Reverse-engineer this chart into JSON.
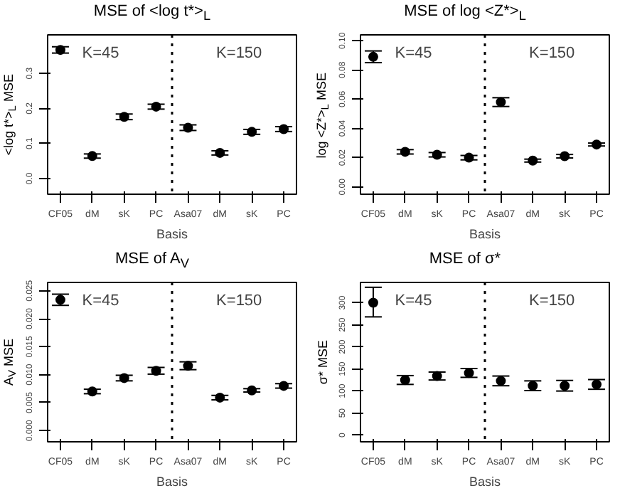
{
  "chart_data": [
    {
      "type": "scatter",
      "title": "MSE of <log t*>$_{L}$",
      "xlabel": "Basis",
      "ylabel": "<log t*>$_{L}$ MSE",
      "categories": [
        "CF05",
        "dM",
        "sK",
        "PC",
        "Asa07",
        "dM",
        "sK",
        "PC"
      ],
      "series": [
        {
          "color": "#000000",
          "values": [
            0.367,
            0.064,
            0.176,
            0.205,
            0.145,
            0.073,
            0.133,
            0.141
          ],
          "errors": [
            0.009,
            0.006,
            0.008,
            0.007,
            0.008,
            0.006,
            0.007,
            0.007
          ]
        }
      ],
      "marker": "circle",
      "ylim": [
        -0.045,
        0.41
      ],
      "yticks": [
        {
          "value": 0,
          "label": "0.0"
        },
        0.1,
        0.2,
        0.3
      ],
      "grid": false,
      "annotations": [
        "K=45",
        "K=150"
      ]
    },
    {
      "type": "scatter",
      "title": "MSE of log <Z*>$_{L}$",
      "xlabel": "Basis",
      "ylabel": "log <Z*>$_{L}$ MSE",
      "categories": [
        "CF05",
        "dM",
        "sK",
        "PC",
        "Asa07",
        "dM",
        "sK",
        "PC"
      ],
      "series": [
        {
          "color": "#000000",
          "values": [
            0.089,
            0.024,
            0.022,
            0.02,
            0.058,
            0.018,
            0.021,
            0.029
          ],
          "errors": [
            0.004,
            0.0015,
            0.0015,
            0.0015,
            0.003,
            0.001,
            0.0012,
            0.001
          ]
        }
      ],
      "marker": "circle",
      "ylim": [
        -0.005,
        0.104
      ],
      "yticks": [
        {
          "value": 0,
          "label": "0.00"
        },
        0.02,
        0.04,
        0.06,
        0.08,
        {
          "value": 0.1,
          "label": "0.10"
        }
      ],
      "grid": false,
      "annotations": [
        "K=45",
        "K=150"
      ]
    },
    {
      "type": "scatter",
      "title": "MSE of A$_{V}$",
      "xlabel": "Basis",
      "ylabel": "A$_{V}$ MSE",
      "categories": [
        "CF05",
        "dM",
        "sK",
        "PC",
        "Asa07",
        "dM",
        "sK",
        "PC"
      ],
      "series": [
        {
          "color": "#000000",
          "values": [
            0.0234,
            0.007,
            0.0094,
            0.0107,
            0.0116,
            0.0059,
            0.0072,
            0.008
          ],
          "errors": [
            0.001,
            0.0004,
            0.0005,
            0.0006,
            0.0007,
            0.0004,
            0.0003,
            0.0004
          ]
        }
      ],
      "marker": "circle",
      "ylim": [
        -0.002,
        0.0265
      ],
      "yticks": [
        {
          "value": 0,
          "label": "0.000"
        },
        0.005,
        {
          "value": 0.01,
          "label": "0.010"
        },
        0.015,
        {
          "value": 0.02,
          "label": "0.020"
        },
        0.025
      ],
      "grid": false,
      "annotations": [
        "K=45",
        "K=150"
      ]
    },
    {
      "type": "scatter",
      "title": "MSE of σ*",
      "xlabel": "Basis",
      "ylabel": "σ* MSE",
      "categories": [
        "CF05",
        "dM",
        "sK",
        "PC",
        "Asa07",
        "dM",
        "sK",
        "PC"
      ],
      "series": [
        {
          "color": "#000000",
          "values": [
            300,
            125,
            134,
            141,
            123,
            112,
            112,
            115
          ],
          "errors": [
            [
              268,
              335
            ],
            10,
            9,
            10,
            11,
            11,
            12,
            11
          ]
        }
      ],
      "marker": "circle",
      "ylim": [
        -15,
        346
      ],
      "yticks": [
        0,
        50,
        100,
        150,
        200,
        250,
        300
      ],
      "grid": false,
      "annotations": [
        "K=45",
        "K=150"
      ]
    }
  ]
}
